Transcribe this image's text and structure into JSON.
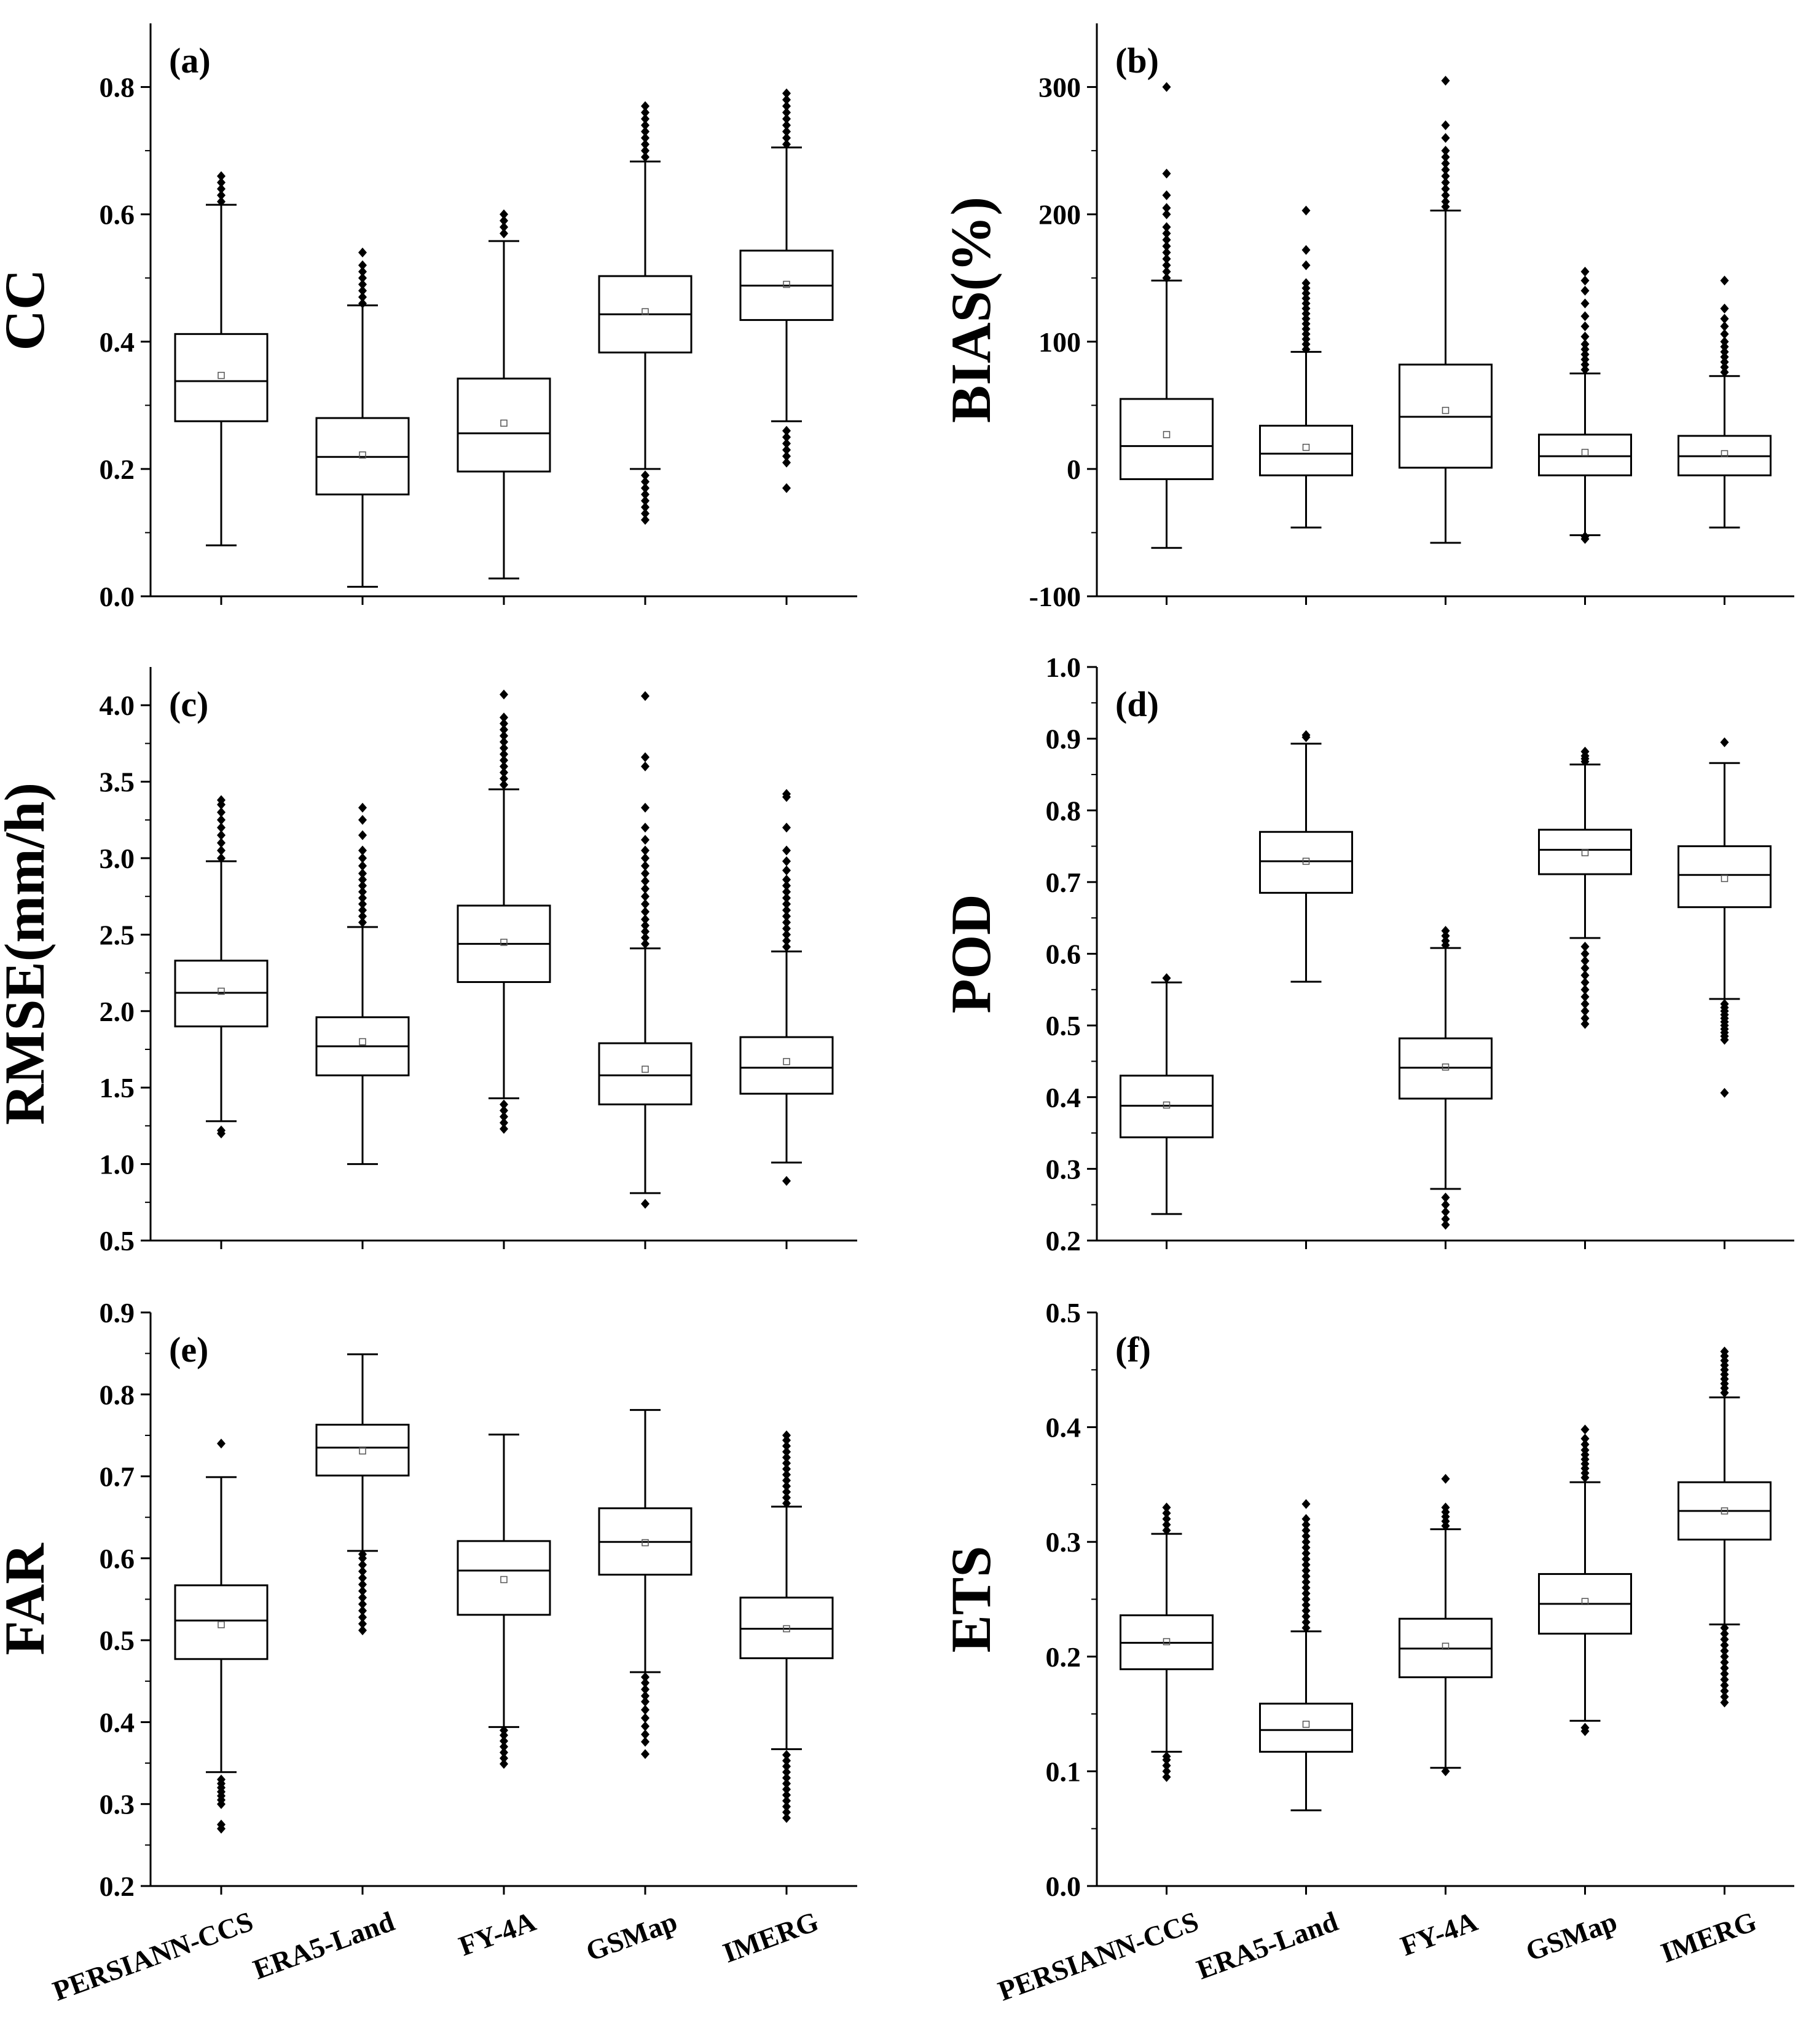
{
  "chart_data": [
    {
      "type": "box",
      "panel_label": "(a)",
      "ylabel": "CC",
      "ylim": [
        0.0,
        0.9
      ],
      "yticks": [
        "0.0",
        "0.2",
        "0.4",
        "0.6",
        "0.8"
      ],
      "categories": [
        "PERSIANN-CCS",
        "ERA5-Land",
        "FY-4A",
        "GSMap",
        "IMERG"
      ],
      "show_xlabels": false,
      "boxes": [
        {
          "whislo": 0.08,
          "q1": 0.275,
          "med": 0.338,
          "q3": 0.412,
          "whishi": 0.615,
          "mean": 0.347,
          "fliers": [
            0.62,
            0.63,
            0.64,
            0.65,
            0.66
          ]
        },
        {
          "whislo": 0.015,
          "q1": 0.16,
          "med": 0.219,
          "q3": 0.28,
          "whishi": 0.457,
          "mean": 0.222,
          "fliers": [
            0.46,
            0.47,
            0.48,
            0.49,
            0.5,
            0.51,
            0.52,
            0.54
          ]
        },
        {
          "whislo": 0.028,
          "q1": 0.196,
          "med": 0.256,
          "q3": 0.342,
          "whishi": 0.558,
          "mean": 0.272,
          "fliers": [
            0.57,
            0.58,
            0.59,
            0.6
          ]
        },
        {
          "whislo": 0.2,
          "q1": 0.383,
          "med": 0.443,
          "q3": 0.503,
          "whishi": 0.683,
          "mean": 0.447,
          "fliers": [
            0.12,
            0.13,
            0.14,
            0.15,
            0.16,
            0.17,
            0.18,
            0.19,
            0.69,
            0.7,
            0.71,
            0.72,
            0.73,
            0.74,
            0.75,
            0.76,
            0.77
          ]
        },
        {
          "whislo": 0.275,
          "q1": 0.434,
          "med": 0.488,
          "q3": 0.543,
          "whishi": 0.705,
          "mean": 0.49,
          "fliers": [
            0.17,
            0.21,
            0.22,
            0.23,
            0.24,
            0.25,
            0.26,
            0.71,
            0.72,
            0.73,
            0.74,
            0.75,
            0.76,
            0.77,
            0.78,
            0.79
          ]
        }
      ]
    },
    {
      "type": "box",
      "panel_label": "(b)",
      "ylabel": "BIAS(%)",
      "ylim": [
        -100,
        350
      ],
      "yticks": [
        "-100",
        "0",
        "100",
        "200",
        "300"
      ],
      "categories": [
        "PERSIANN-CCS",
        "ERA5-Land",
        "FY-4A",
        "GSMap",
        "IMERG"
      ],
      "show_xlabels": false,
      "boxes": [
        {
          "whislo": -62,
          "q1": -8,
          "med": 18,
          "q3": 55,
          "whishi": 148,
          "mean": 27,
          "fliers": [
            150,
            155,
            160,
            165,
            170,
            175,
            180,
            185,
            190,
            200,
            205,
            215,
            232,
            300
          ]
        },
        {
          "whislo": -46,
          "q1": -5,
          "med": 12,
          "q3": 34,
          "whishi": 92,
          "mean": 17,
          "fliers": [
            94,
            98,
            102,
            106,
            110,
            114,
            118,
            122,
            126,
            130,
            134,
            138,
            142,
            146,
            160,
            172,
            203
          ]
        },
        {
          "whislo": -58,
          "q1": 1,
          "med": 41,
          "q3": 82,
          "whishi": 203,
          "mean": 46,
          "fliers": [
            206,
            210,
            215,
            220,
            225,
            230,
            235,
            240,
            245,
            250,
            260,
            270,
            305
          ]
        },
        {
          "whislo": -52,
          "q1": -5,
          "med": 10,
          "q3": 27,
          "whishi": 75,
          "mean": 13,
          "fliers": [
            -55,
            -53,
            78,
            82,
            86,
            90,
            94,
            98,
            104,
            112,
            120,
            130,
            140,
            148,
            155
          ]
        },
        {
          "whislo": -46,
          "q1": -5,
          "med": 10,
          "q3": 26,
          "whishi": 73,
          "mean": 12,
          "fliers": [
            76,
            80,
            84,
            88,
            92,
            96,
            100,
            106,
            112,
            118,
            126,
            148
          ]
        }
      ]
    },
    {
      "type": "box",
      "panel_label": "(c)",
      "ylabel": "RMSE(mm/h)",
      "ylim": [
        0.5,
        4.25
      ],
      "yticks": [
        "0.5",
        "1.0",
        "1.5",
        "2.0",
        "2.5",
        "3.0",
        "3.5",
        "4.0"
      ],
      "categories": [
        "PERSIANN-CCS",
        "ERA5-Land",
        "FY-4A",
        "GSMap",
        "IMERG"
      ],
      "show_xlabels": false,
      "boxes": [
        {
          "whislo": 1.28,
          "q1": 1.9,
          "med": 2.12,
          "q3": 2.33,
          "whishi": 2.98,
          "mean": 2.13,
          "fliers": [
            1.2,
            1.22,
            3.0,
            3.05,
            3.1,
            3.15,
            3.2,
            3.25,
            3.3,
            3.35,
            3.38
          ]
        },
        {
          "whislo": 1.0,
          "q1": 1.58,
          "med": 1.77,
          "q3": 1.96,
          "whishi": 2.55,
          "mean": 1.8,
          "fliers": [
            2.58,
            2.62,
            2.66,
            2.7,
            2.74,
            2.78,
            2.82,
            2.86,
            2.9,
            2.95,
            3.0,
            3.05,
            3.15,
            3.25,
            3.33
          ]
        },
        {
          "whislo": 1.43,
          "q1": 2.19,
          "med": 2.44,
          "q3": 2.69,
          "whishi": 3.45,
          "mean": 2.45,
          "fliers": [
            1.23,
            1.27,
            1.31,
            1.35,
            1.39,
            3.48,
            3.52,
            3.56,
            3.6,
            3.64,
            3.68,
            3.72,
            3.76,
            3.8,
            3.84,
            3.88,
            3.92,
            4.07
          ]
        },
        {
          "whislo": 0.81,
          "q1": 1.39,
          "med": 1.58,
          "q3": 1.79,
          "whishi": 2.41,
          "mean": 1.62,
          "fliers": [
            0.74,
            2.44,
            2.48,
            2.52,
            2.56,
            2.6,
            2.65,
            2.7,
            2.75,
            2.8,
            2.85,
            2.9,
            2.95,
            3.0,
            3.05,
            3.12,
            3.2,
            3.33,
            3.6,
            3.66,
            4.06
          ]
        },
        {
          "whislo": 1.01,
          "q1": 1.46,
          "med": 1.63,
          "q3": 1.83,
          "whishi": 2.39,
          "mean": 1.67,
          "fliers": [
            0.89,
            2.42,
            2.46,
            2.5,
            2.54,
            2.58,
            2.62,
            2.66,
            2.7,
            2.74,
            2.78,
            2.82,
            2.86,
            2.92,
            2.98,
            3.05,
            3.2,
            3.4,
            3.42
          ]
        }
      ]
    },
    {
      "type": "box",
      "panel_label": "(d)",
      "ylabel": "POD",
      "ylim": [
        0.2,
        1.0
      ],
      "yticks": [
        "0.2",
        "0.3",
        "0.4",
        "0.5",
        "0.6",
        "0.7",
        "0.8",
        "0.9",
        "1.0"
      ],
      "categories": [
        "PERSIANN-CCS",
        "ERA5-Land",
        "FY-4A",
        "GSMap",
        "IMERG"
      ],
      "show_xlabels": false,
      "boxes": [
        {
          "whislo": 0.237,
          "q1": 0.344,
          "med": 0.388,
          "q3": 0.43,
          "whishi": 0.56,
          "mean": 0.389,
          "fliers": [
            0.566
          ]
        },
        {
          "whislo": 0.561,
          "q1": 0.685,
          "med": 0.729,
          "q3": 0.77,
          "whishi": 0.893,
          "mean": 0.729,
          "fliers": [
            0.902,
            0.905
          ]
        },
        {
          "whislo": 0.272,
          "q1": 0.398,
          "med": 0.441,
          "q3": 0.482,
          "whishi": 0.608,
          "mean": 0.442,
          "fliers": [
            0.222,
            0.23,
            0.24,
            0.25,
            0.26,
            0.612,
            0.618,
            0.625,
            0.632
          ]
        },
        {
          "whislo": 0.622,
          "q1": 0.711,
          "med": 0.745,
          "q3": 0.773,
          "whishi": 0.864,
          "mean": 0.741,
          "fliers": [
            0.502,
            0.51,
            0.52,
            0.53,
            0.54,
            0.55,
            0.56,
            0.57,
            0.58,
            0.59,
            0.6,
            0.61,
            0.868,
            0.872,
            0.876,
            0.882
          ]
        },
        {
          "whislo": 0.537,
          "q1": 0.665,
          "med": 0.71,
          "q3": 0.75,
          "whishi": 0.866,
          "mean": 0.705,
          "fliers": [
            0.406,
            0.48,
            0.485,
            0.49,
            0.495,
            0.5,
            0.505,
            0.51,
            0.515,
            0.52,
            0.525,
            0.53,
            0.895
          ]
        }
      ]
    },
    {
      "type": "box",
      "panel_label": "(e)",
      "ylabel": "FAR",
      "ylim": [
        0.2,
        0.9
      ],
      "yticks": [
        "0.2",
        "0.3",
        "0.4",
        "0.5",
        "0.6",
        "0.7",
        "0.8",
        "0.9"
      ],
      "categories": [
        "PERSIANN-CCS",
        "ERA5-Land",
        "FY-4A",
        "GSMap",
        "IMERG"
      ],
      "show_xlabels": true,
      "boxes": [
        {
          "whislo": 0.339,
          "q1": 0.477,
          "med": 0.524,
          "q3": 0.567,
          "whishi": 0.699,
          "mean": 0.519,
          "fliers": [
            0.27,
            0.275,
            0.3,
            0.305,
            0.31,
            0.315,
            0.32,
            0.325,
            0.33,
            0.74
          ]
        },
        {
          "whislo": 0.609,
          "q1": 0.701,
          "med": 0.735,
          "q3": 0.763,
          "whishi": 0.849,
          "mean": 0.731,
          "fliers": [
            0.512,
            0.52,
            0.528,
            0.536,
            0.544,
            0.552,
            0.56,
            0.568,
            0.576,
            0.584,
            0.592,
            0.6,
            0.605
          ]
        },
        {
          "whislo": 0.394,
          "q1": 0.531,
          "med": 0.585,
          "q3": 0.621,
          "whishi": 0.751,
          "mean": 0.574,
          "fliers": [
            0.349,
            0.356,
            0.363,
            0.37,
            0.377,
            0.384,
            0.39
          ]
        },
        {
          "whislo": 0.461,
          "q1": 0.58,
          "med": 0.62,
          "q3": 0.661,
          "whishi": 0.781,
          "mean": 0.619,
          "fliers": [
            0.361,
            0.376,
            0.385,
            0.395,
            0.405,
            0.415,
            0.425,
            0.432,
            0.44,
            0.448,
            0.455
          ]
        },
        {
          "whislo": 0.367,
          "q1": 0.478,
          "med": 0.514,
          "q3": 0.552,
          "whishi": 0.663,
          "mean": 0.514,
          "fliers": [
            0.283,
            0.29,
            0.297,
            0.304,
            0.311,
            0.318,
            0.325,
            0.332,
            0.339,
            0.346,
            0.353,
            0.36,
            0.667,
            0.674,
            0.681,
            0.688,
            0.695,
            0.702,
            0.709,
            0.716,
            0.723,
            0.73,
            0.737,
            0.744,
            0.75
          ]
        }
      ]
    },
    {
      "type": "box",
      "panel_label": "(f)",
      "ylabel": "ETS",
      "ylim": [
        0.0,
        0.5
      ],
      "yticks": [
        "0.0",
        "0.1",
        "0.2",
        "0.3",
        "0.4",
        "0.5"
      ],
      "categories": [
        "PERSIANN-CCS",
        "ERA5-Land",
        "FY-4A",
        "GSMap",
        "IMERG"
      ],
      "show_xlabels": true,
      "boxes": [
        {
          "whislo": 0.117,
          "q1": 0.189,
          "med": 0.212,
          "q3": 0.236,
          "whishi": 0.307,
          "mean": 0.213,
          "fliers": [
            0.095,
            0.1,
            0.105,
            0.11,
            0.113,
            0.31,
            0.315,
            0.32,
            0.325,
            0.33
          ]
        },
        {
          "whislo": 0.066,
          "q1": 0.117,
          "med": 0.136,
          "q3": 0.159,
          "whishi": 0.222,
          "mean": 0.141,
          "fliers": [
            0.225,
            0.23,
            0.235,
            0.24,
            0.245,
            0.25,
            0.255,
            0.26,
            0.265,
            0.27,
            0.275,
            0.28,
            0.285,
            0.29,
            0.295,
            0.3,
            0.305,
            0.31,
            0.315,
            0.32,
            0.333
          ]
        },
        {
          "whislo": 0.103,
          "q1": 0.182,
          "med": 0.207,
          "q3": 0.233,
          "whishi": 0.311,
          "mean": 0.209,
          "fliers": [
            0.1,
            0.314,
            0.318,
            0.322,
            0.326,
            0.33,
            0.355
          ]
        },
        {
          "whislo": 0.144,
          "q1": 0.22,
          "med": 0.246,
          "q3": 0.272,
          "whishi": 0.352,
          "mean": 0.248,
          "fliers": [
            0.135,
            0.138,
            0.356,
            0.36,
            0.364,
            0.368,
            0.372,
            0.376,
            0.38,
            0.385,
            0.39,
            0.398
          ]
        },
        {
          "whislo": 0.228,
          "q1": 0.302,
          "med": 0.327,
          "q3": 0.352,
          "whishi": 0.426,
          "mean": 0.327,
          "fliers": [
            0.16,
            0.165,
            0.17,
            0.175,
            0.18,
            0.185,
            0.19,
            0.195,
            0.2,
            0.205,
            0.21,
            0.215,
            0.22,
            0.225,
            0.43,
            0.434,
            0.438,
            0.442,
            0.446,
            0.45,
            0.454,
            0.458,
            0.462,
            0.466
          ]
        }
      ]
    }
  ]
}
